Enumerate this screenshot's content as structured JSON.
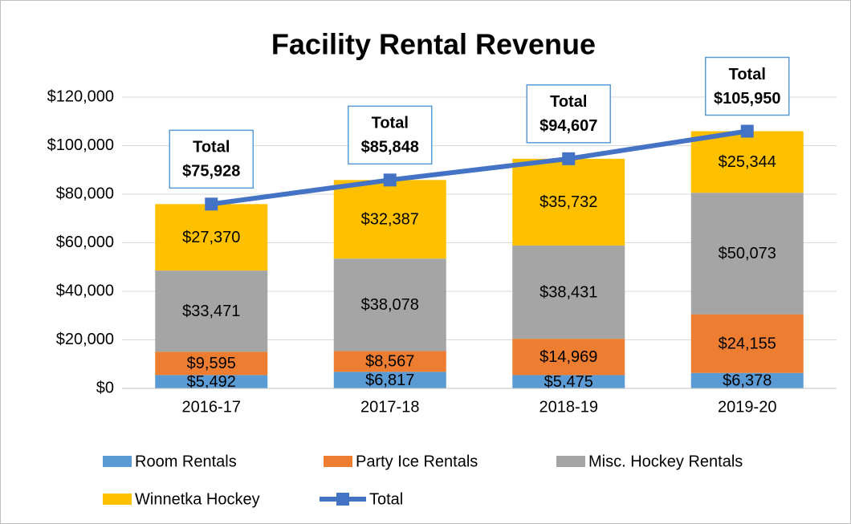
{
  "chart_data": {
    "type": "bar",
    "stacked": true,
    "title": "Facility Rental Revenue",
    "categories": [
      "2016-17",
      "2017-18",
      "2018-19",
      "2019-20"
    ],
    "series": [
      {
        "name": "Room Rentals",
        "color": "#5b9bd5",
        "values": [
          5492,
          6817,
          5475,
          6378
        ],
        "value_labels": [
          "$5,492",
          "$6,817",
          "$5,475",
          "$6,378"
        ]
      },
      {
        "name": "Party Ice Rentals",
        "color": "#ed7d31",
        "values": [
          9595,
          8567,
          14969,
          24155
        ],
        "value_labels": [
          "$9,595",
          "$8,567",
          "$14,969",
          "$24,155"
        ]
      },
      {
        "name": "Misc. Hockey Rentals",
        "color": "#a5a5a5",
        "values": [
          33471,
          38078,
          38431,
          50073
        ],
        "value_labels": [
          "$33,471",
          "$38,078",
          "$38,431",
          "$50,073"
        ]
      },
      {
        "name": "Winnetka Hockey",
        "color": "#ffc000",
        "values": [
          27370,
          32387,
          35732,
          25344
        ],
        "value_labels": [
          "$27,370",
          "$32,387",
          "$35,732",
          "$25,344"
        ]
      },
      {
        "name": "Total",
        "type": "line",
        "color": "#4472c4",
        "values": [
          75928,
          85848,
          94607,
          105950
        ],
        "value_labels": [
          "$75,928",
          "$85,848",
          "$94,607",
          "$105,950"
        ]
      }
    ],
    "ylim": [
      0,
      120000
    ],
    "yticks": [
      {
        "value": 0,
        "label": "$0"
      },
      {
        "value": 20000,
        "label": "$20,000"
      },
      {
        "value": 40000,
        "label": "$40,000"
      },
      {
        "value": 60000,
        "label": "$60,000"
      },
      {
        "value": 80000,
        "label": "$80,000"
      },
      {
        "value": 100000,
        "label": "$100,000"
      },
      {
        "value": 120000,
        "label": "$120,000"
      }
    ],
    "grid": true,
    "legend": "bottom"
  }
}
